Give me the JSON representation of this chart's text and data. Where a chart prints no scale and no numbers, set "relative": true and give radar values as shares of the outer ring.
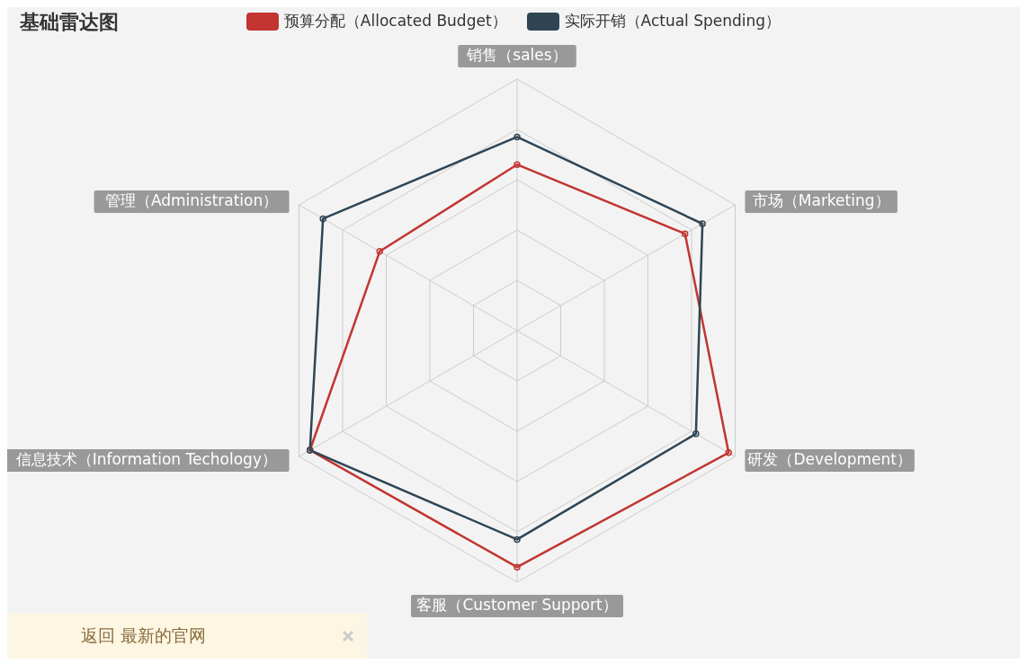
{
  "chart_data": {
    "type": "radar",
    "title": "基础雷达图",
    "relative": true,
    "legend": "top",
    "marker": "circle",
    "grid": true,
    "categories": [
      "销售（sales）",
      "市场（Marketing）",
      "研发（Development）",
      "客服（Customer Support）",
      "信息技术（Information Techology）",
      "管理（Administration）"
    ],
    "series": [
      {
        "name": "预算分配（Allocated Budget）",
        "color": "#c23531",
        "values": [
          0.66,
          0.77,
          0.97,
          0.94,
          0.95,
          0.63
        ]
      },
      {
        "name": "实际开销（Actual Spending）",
        "color": "#2f4554",
        "values": [
          0.77,
          0.85,
          0.82,
          0.83,
          0.95,
          0.89
        ]
      }
    ],
    "annotations": [
      "返回 最新的官网"
    ]
  }
}
